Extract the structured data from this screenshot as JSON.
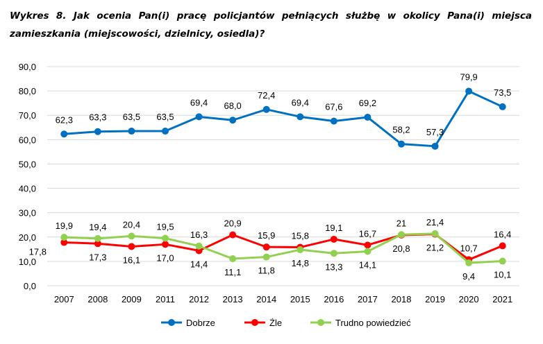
{
  "title": "Wykres 8.  Jak ocenia Pan(i) pracę policjantów pełniących służbę w okolicy Pana(i) miejsca zamieszkania (miejscowości, dzielnicy, osiedla)?",
  "chart_data": {
    "type": "line",
    "title": "Wykres 8.  Jak ocenia Pan(i) pracę policjantów pełniących służbę w okolicy Pana(i) miejsca zamieszkania (miejscowości, dzielnicy, osiedla)?",
    "xlabel": "",
    "ylabel": "",
    "ylim": [
      0,
      90
    ],
    "yticks": [
      "0,0",
      "10,0",
      "20,0",
      "30,0",
      "40,0",
      "50,0",
      "60,0",
      "70,0",
      "80,0",
      "90,0"
    ],
    "grid": true,
    "legend": "bottom",
    "categories": [
      "2007",
      "2008",
      "2009",
      "2011",
      "2012",
      "2013",
      "2014",
      "2015",
      "2016",
      "2017",
      "2018",
      "2019",
      "2020",
      "2021"
    ],
    "series": [
      {
        "name": "Dobrze",
        "color": "#0070C0",
        "values": [
          62.3,
          63.3,
          63.5,
          63.5,
          69.4,
          68.0,
          72.4,
          69.4,
          67.6,
          69.2,
          58.2,
          57.3,
          79.9,
          73.5
        ],
        "labels": [
          "62,3",
          "63,3",
          "63,5",
          "63,5",
          "69,4",
          "68,0",
          "72,4",
          "69,4",
          "67,6",
          "69,2",
          "58,2",
          "57,3",
          "79,9",
          "73,5"
        ]
      },
      {
        "name": "Źle",
        "color": "#FF0000",
        "values": [
          17.8,
          17.3,
          16.1,
          17.0,
          14.4,
          20.9,
          15.9,
          15.8,
          19.1,
          16.7,
          20.8,
          21.2,
          10.7,
          16.4
        ],
        "labels": [
          "17,8",
          "17,3",
          "16,1",
          "17,0",
          "14,4",
          "20,9",
          "15,9",
          "15,8",
          "19,1",
          "16,7",
          "20,8",
          "21,2",
          "10,7",
          "16,4"
        ]
      },
      {
        "name": "Trudno powiedzieć",
        "color": "#92D050",
        "values": [
          19.9,
          19.4,
          20.4,
          19.5,
          16.3,
          11.1,
          11.8,
          14.8,
          13.3,
          14.1,
          21,
          21.4,
          9.4,
          10.1
        ],
        "labels": [
          "19,9",
          "19,4",
          "20,4",
          "19,5",
          "16,3",
          "11,1",
          "11,8",
          "14,8",
          "13,3",
          "14,1",
          "21",
          "21,4",
          "9,4",
          "10,1"
        ]
      }
    ]
  }
}
